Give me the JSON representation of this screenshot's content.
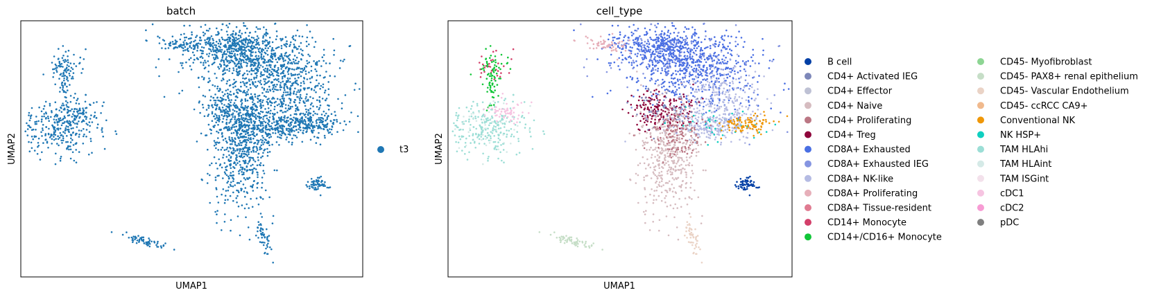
{
  "chart_data": [
    {
      "type": "scatter",
      "title": "batch",
      "xlabel": "UMAP1",
      "ylabel": "UMAP2",
      "xlim": [
        0,
        100
      ],
      "ylim": [
        0,
        100
      ],
      "grid": false,
      "ticks": "none",
      "legend": {
        "placement": "right",
        "entries": [
          {
            "label": "t3",
            "color": "#1f77b4"
          }
        ]
      },
      "clusters_note": "",
      "groups": [
        {
          "label": "t3",
          "color": "#1f77b4"
        }
      ]
    },
    {
      "type": "scatter",
      "title": "cell_type",
      "xlabel": "UMAP1",
      "ylabel": "UMAP2",
      "xlim": [
        0,
        100
      ],
      "ylim": [
        0,
        100
      ],
      "grid": false,
      "ticks": "none",
      "legend": {
        "placement": "right",
        "columns": 2,
        "entries": [
          {
            "label": "B cell",
            "color": "#023fa5"
          },
          {
            "label": "CD4+ Activated IEG",
            "color": "#7d87b9"
          },
          {
            "label": "CD4+ Effector",
            "color": "#bec1d4"
          },
          {
            "label": "CD4+ Naive",
            "color": "#d6bcc0"
          },
          {
            "label": "CD4+ Proliferating",
            "color": "#bb7784"
          },
          {
            "label": "CD4+ Treg",
            "color": "#8e063b"
          },
          {
            "label": "CD8A+ Exhausted",
            "color": "#4a6fe3"
          },
          {
            "label": "CD8A+ Exhausted IEG",
            "color": "#8595e1"
          },
          {
            "label": "CD8A+ NK-like",
            "color": "#b5bbe3"
          },
          {
            "label": "CD8A+ Proliferating",
            "color": "#e6afb9"
          },
          {
            "label": "CD8A+ Tissue-resident",
            "color": "#e07b91"
          },
          {
            "label": "CD14+ Monocyte",
            "color": "#d33f6a"
          },
          {
            "label": "CD14+/CD16+ Monocyte",
            "color": "#11c638"
          },
          {
            "label": "CD45- Myofibroblast",
            "color": "#8dd593"
          },
          {
            "label": "CD45- PAX8+ renal epithelium",
            "color": "#c6dec7"
          },
          {
            "label": "CD45- Vascular Endothelium",
            "color": "#ead3c6"
          },
          {
            "label": "CD45- ccRCC CA9+",
            "color": "#f0b98d"
          },
          {
            "label": "Conventional NK",
            "color": "#ef9708"
          },
          {
            "label": "NK HSP+",
            "color": "#0fcfc0"
          },
          {
            "label": "TAM HLAhi",
            "color": "#9cded6"
          },
          {
            "label": "TAM HLAint",
            "color": "#d5eae7"
          },
          {
            "label": "TAM ISGint",
            "color": "#f3e1eb"
          },
          {
            "label": "cDC1",
            "color": "#f6c4e1"
          },
          {
            "label": "cDC2",
            "color": "#f79cd4"
          },
          {
            "label": "pDC",
            "color": "#7f7f7f"
          }
        ]
      }
    }
  ]
}
